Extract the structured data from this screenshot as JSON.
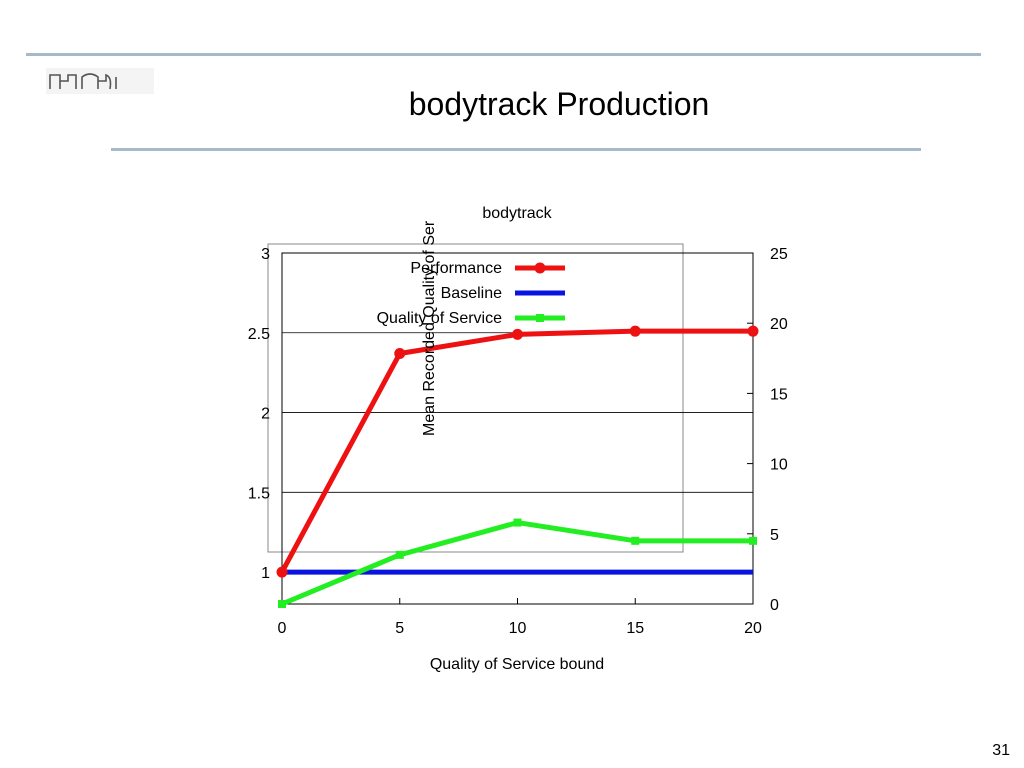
{
  "slide": {
    "title": "bodytrack Production",
    "page_number": "31",
    "logo_icon": "company-logo-icon"
  },
  "colors": {
    "rule": "#a7b9c9",
    "performance": "#ee1111",
    "baseline": "#0a14e0",
    "quality_of_service": "#22ee22"
  },
  "chart_data": {
    "type": "line",
    "title": "bodytrack",
    "xlabel": "Quality of Service bound",
    "y2label": "Mean Recorded Quality of Ser",
    "x": [
      0,
      5,
      10,
      15,
      20
    ],
    "xlim": [
      0,
      20
    ],
    "ylim": [
      0.8,
      3
    ],
    "y2lim": [
      0,
      25
    ],
    "x_ticks": [
      "0",
      "5",
      "10",
      "15",
      "20"
    ],
    "y_ticks": [
      "1",
      "1.5",
      "2",
      "2.5",
      "3"
    ],
    "y2_ticks": [
      "0",
      "5",
      "10",
      "15",
      "20",
      "25"
    ],
    "grid": true,
    "legend_position": "top-center",
    "series": [
      {
        "name": "Performance",
        "axis": "left",
        "values": [
          1.0,
          2.37,
          2.49,
          2.51,
          2.51
        ]
      },
      {
        "name": "Baseline",
        "axis": "left",
        "values": [
          1.0,
          1.0,
          1.0,
          1.0,
          1.0
        ]
      },
      {
        "name": "Quality of Service",
        "axis": "right",
        "values": [
          0,
          3.5,
          5.8,
          4.5,
          4.5
        ]
      }
    ]
  }
}
